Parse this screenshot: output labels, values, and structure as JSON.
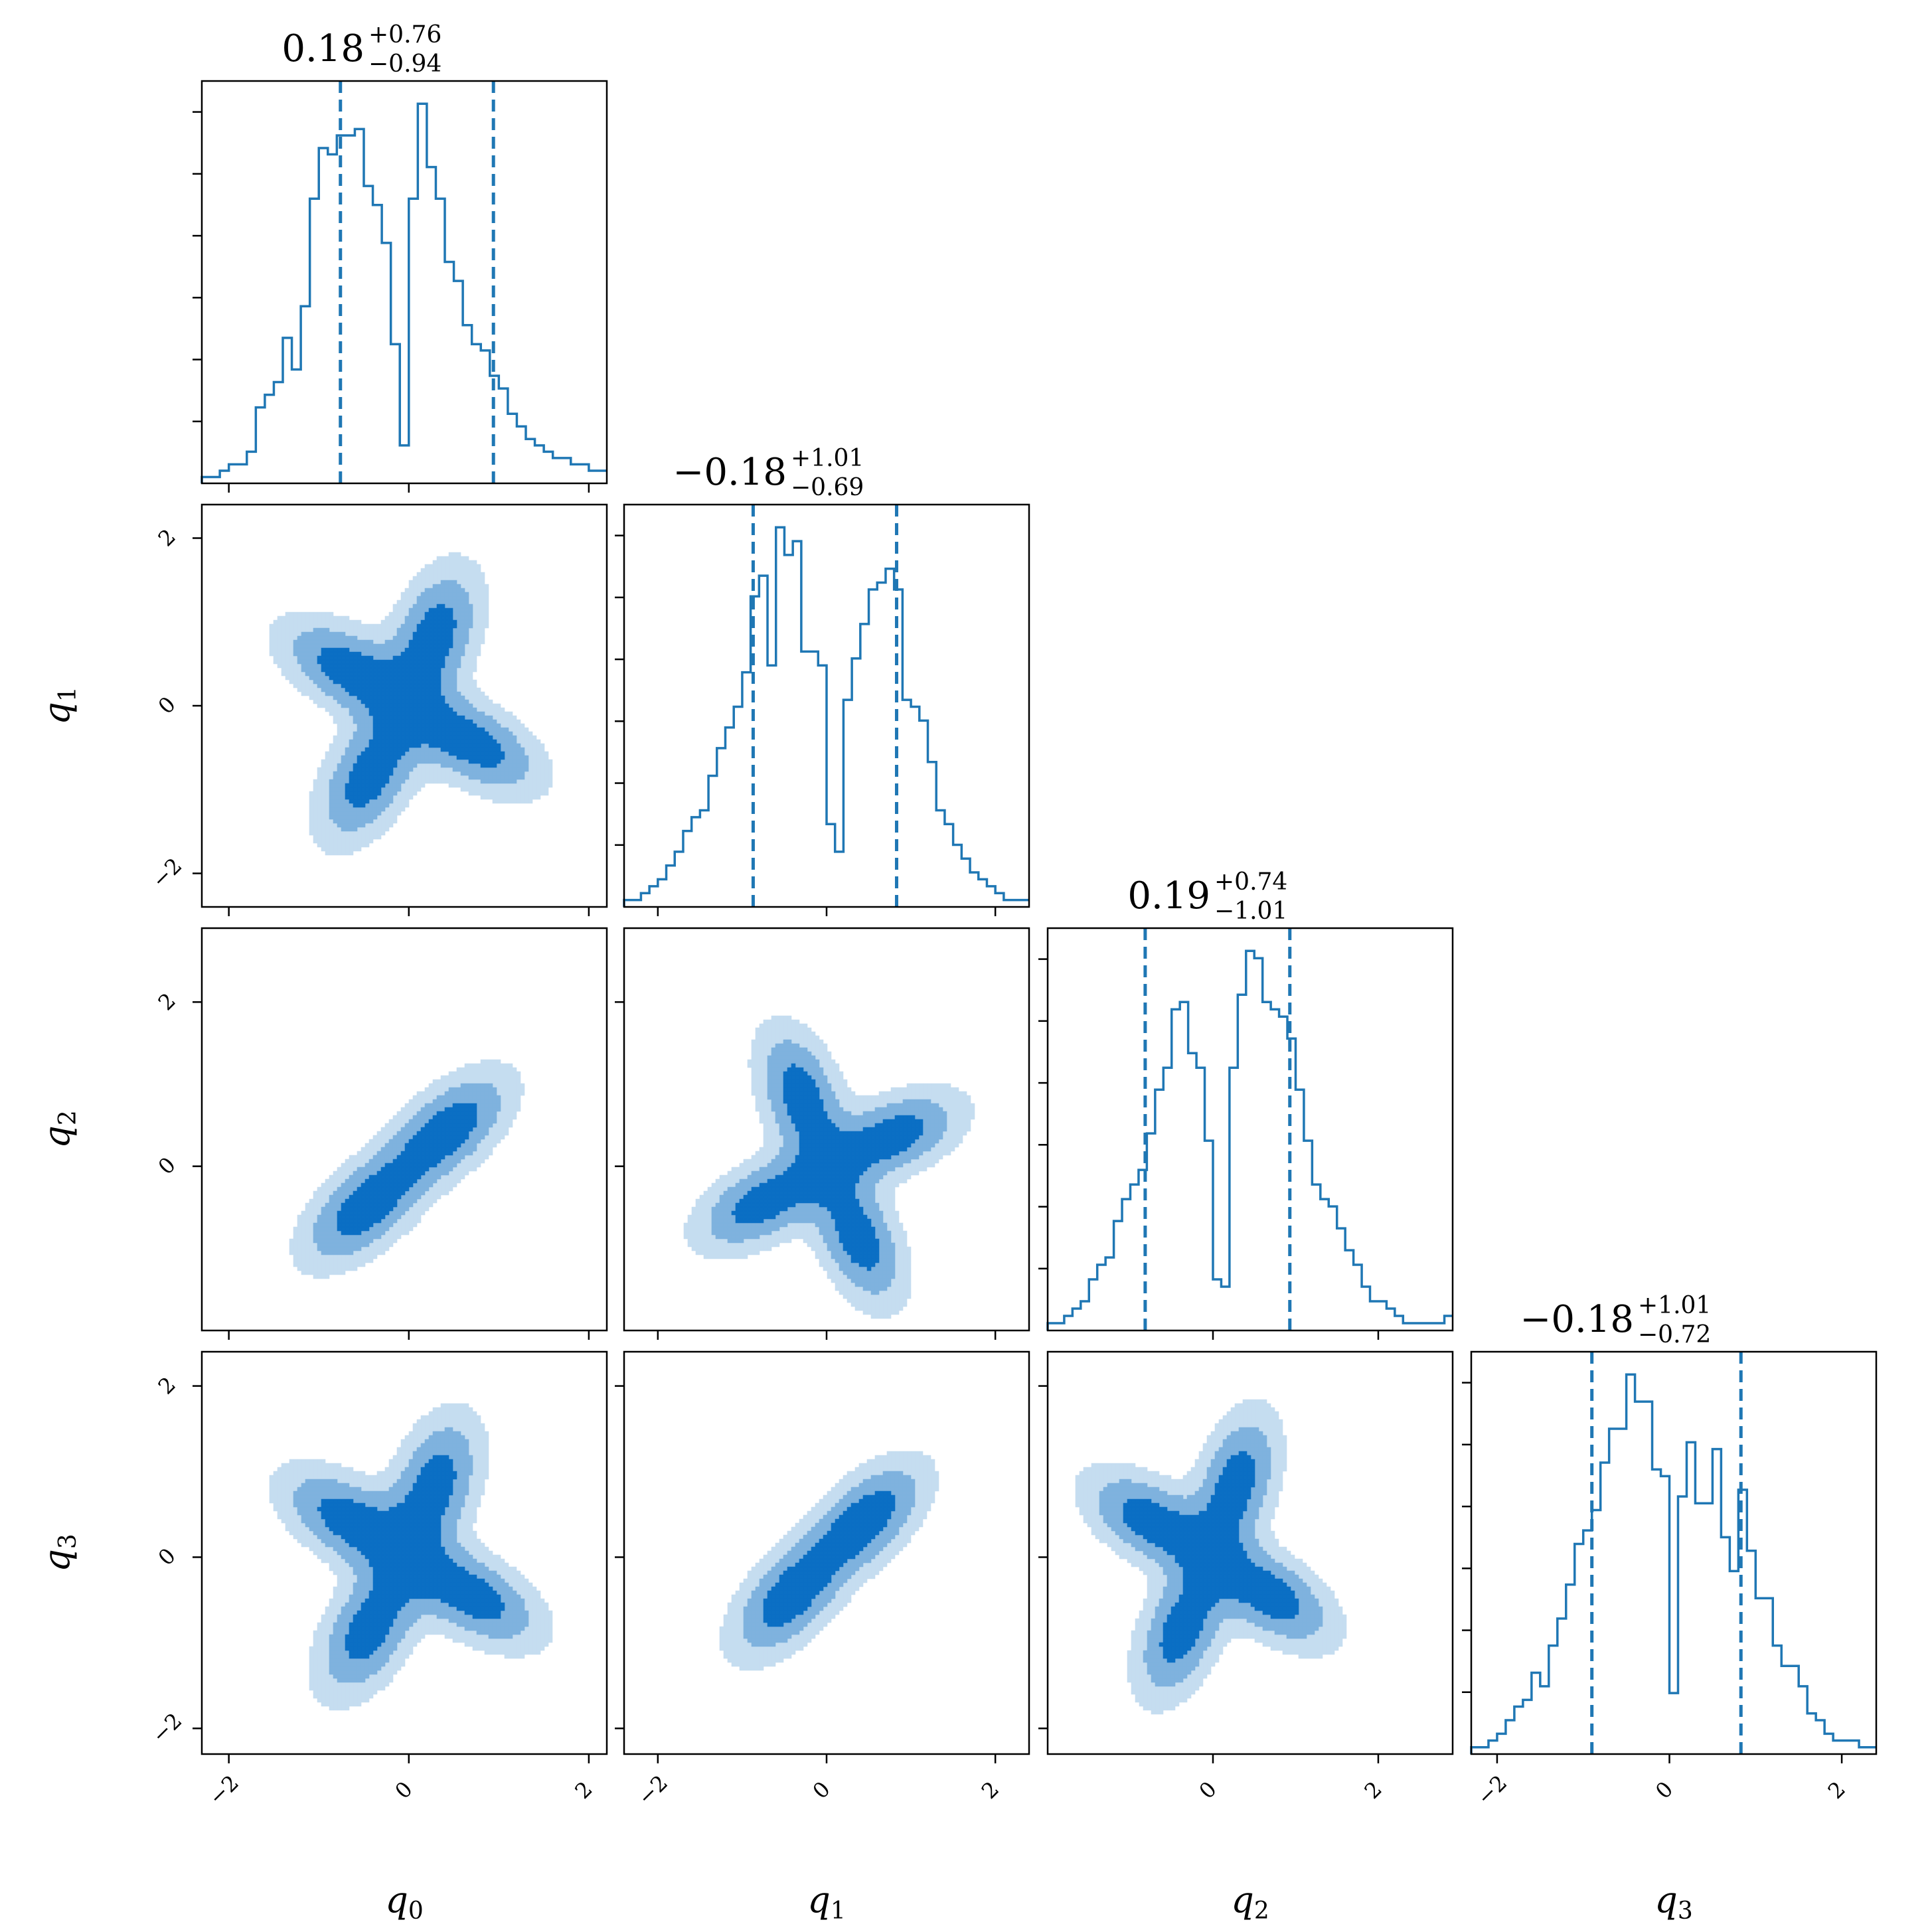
{
  "chart_data": {
    "type": "corner",
    "parameters": [
      "q",
      "q",
      "q",
      "q"
    ],
    "parameter_subscripts": [
      "0",
      "1",
      "2",
      "3"
    ],
    "colors": {
      "line": "#1f77b4",
      "level_outer": "#c5ddf0",
      "level_mid": "#7fb2de",
      "level_inner": "#0b6fc4"
    },
    "grid": false,
    "ticks": {
      "q0": [
        "−2",
        "0",
        "2"
      ],
      "q1": [
        "−2",
        "0",
        "2"
      ],
      "q2": [
        "0",
        "2"
      ],
      "q3": [
        "−2",
        "0",
        "2"
      ]
    },
    "axis_ranges": {
      "q0": [
        -2.3,
        2.2
      ],
      "q1": [
        -2.4,
        2.4
      ],
      "q2": [
        -2.0,
        2.9
      ],
      "q3": [
        -2.3,
        2.4
      ]
    },
    "marginals": [
      {
        "param": "q0",
        "title": {
          "median": "0.18",
          "plus": "+0.76",
          "minus": "−0.94"
        },
        "quantiles": [
          -0.76,
          0.94
        ],
        "bin_edges": [
          -2.3,
          -2.2,
          -2.1,
          -2.0,
          -1.9,
          -1.8,
          -1.7,
          -1.6,
          -1.5,
          -1.4,
          -1.3,
          -1.2,
          -1.1,
          -1.0,
          -0.9,
          -0.8,
          -0.7,
          -0.6,
          -0.5,
          -0.4,
          -0.3,
          -0.2,
          -0.1,
          0.0,
          0.1,
          0.2,
          0.3,
          0.4,
          0.5,
          0.6,
          0.7,
          0.8,
          0.9,
          1.0,
          1.1,
          1.2,
          1.3,
          1.4,
          1.5,
          1.6,
          1.7,
          1.8,
          1.9,
          2.0,
          2.1,
          2.2
        ],
        "counts": [
          1,
          1,
          2,
          3,
          3,
          5,
          12,
          14,
          16,
          23,
          18,
          28,
          45,
          53,
          52,
          55,
          55,
          56,
          47,
          44,
          38,
          22,
          6,
          45,
          60,
          50,
          45,
          35,
          32,
          25,
          22,
          21,
          17,
          15,
          11,
          9,
          7,
          6,
          5,
          4,
          4,
          3,
          3,
          2,
          2
        ]
      },
      {
        "param": "q1",
        "title": {
          "median": "−0.18",
          "plus": "+1.01",
          "minus": "−0.69"
        },
        "quantiles": [
          -0.87,
          0.83
        ],
        "bin_edges": [
          -2.4,
          -2.3,
          -2.2,
          -2.1,
          -2.0,
          -1.9,
          -1.8,
          -1.7,
          -1.6,
          -1.5,
          -1.4,
          -1.3,
          -1.2,
          -1.1,
          -1.0,
          -0.9,
          -0.8,
          -0.7,
          -0.6,
          -0.5,
          -0.4,
          -0.3,
          -0.2,
          -0.1,
          0.0,
          0.1,
          0.2,
          0.3,
          0.4,
          0.5,
          0.6,
          0.7,
          0.8,
          0.9,
          1.0,
          1.1,
          1.2,
          1.3,
          1.4,
          1.5,
          1.6,
          1.7,
          1.8,
          1.9,
          2.0,
          2.1,
          2.2,
          2.3,
          2.4
        ],
        "counts": [
          1,
          1,
          2,
          3,
          4,
          6,
          8,
          11,
          13,
          14,
          19,
          23,
          26,
          29,
          34,
          45,
          48,
          35,
          55,
          51,
          53,
          37,
          37,
          35,
          12,
          8,
          30,
          36,
          41,
          46,
          47,
          49,
          46,
          30,
          29,
          27,
          21,
          14,
          12,
          9,
          7,
          5,
          4,
          3,
          2,
          1,
          1,
          1
        ]
      },
      {
        "param": "q2",
        "title": {
          "median": "0.19",
          "plus": "+0.74",
          "minus": "−1.01"
        },
        "quantiles": [
          -0.82,
          0.93
        ],
        "bin_edges": [
          -2.0,
          -1.9,
          -1.8,
          -1.7,
          -1.6,
          -1.5,
          -1.4,
          -1.3,
          -1.2,
          -1.1,
          -1.0,
          -0.9,
          -0.8,
          -0.7,
          -0.6,
          -0.5,
          -0.4,
          -0.3,
          -0.2,
          -0.1,
          0.0,
          0.1,
          0.2,
          0.3,
          0.4,
          0.5,
          0.6,
          0.7,
          0.8,
          0.9,
          1.0,
          1.1,
          1.2,
          1.3,
          1.4,
          1.5,
          1.6,
          1.7,
          1.8,
          1.9,
          2.0,
          2.1,
          2.2,
          2.3,
          2.4,
          2.5,
          2.6,
          2.7,
          2.8,
          2.9
        ],
        "counts": [
          1,
          1,
          2,
          3,
          4,
          7,
          9,
          10,
          15,
          18,
          20,
          22,
          27,
          33,
          36,
          44,
          45,
          38,
          36,
          26,
          7,
          6,
          36,
          46,
          52,
          51,
          45,
          44,
          43,
          40,
          33,
          26,
          20,
          18,
          17,
          14,
          11,
          9,
          6,
          4,
          4,
          3,
          2,
          1,
          1,
          1,
          1,
          1,
          2
        ]
      },
      {
        "param": "q3",
        "title": {
          "median": "−0.18",
          "plus": "+1.01",
          "minus": "−0.72"
        },
        "quantiles": [
          -0.9,
          0.83
        ],
        "bin_edges": [
          -2.3,
          -2.2,
          -2.1,
          -2.0,
          -1.9,
          -1.8,
          -1.7,
          -1.6,
          -1.5,
          -1.4,
          -1.3,
          -1.2,
          -1.1,
          -1.0,
          -0.9,
          -0.8,
          -0.7,
          -0.6,
          -0.5,
          -0.4,
          -0.3,
          -0.2,
          -0.1,
          0.0,
          0.1,
          0.2,
          0.3,
          0.4,
          0.5,
          0.6,
          0.7,
          0.8,
          0.9,
          1.0,
          1.1,
          1.2,
          1.3,
          1.4,
          1.5,
          1.6,
          1.7,
          1.8,
          1.9,
          2.0,
          2.1,
          2.2,
          2.3,
          2.4
        ],
        "counts": [
          1,
          1,
          2,
          3,
          5,
          7,
          8,
          12,
          10,
          16,
          20,
          25,
          31,
          33,
          36,
          43,
          48,
          48,
          56,
          52,
          52,
          42,
          41,
          9,
          38,
          46,
          37,
          37,
          45,
          32,
          27,
          39,
          30,
          23,
          23,
          16,
          13,
          13,
          10,
          6,
          5,
          3,
          2,
          2,
          2,
          1,
          1
        ]
      }
    ],
    "pairs": [
      {
        "x": "q0",
        "y": "q1",
        "blobs": [
          [
            -0.65,
            0.42,
            0.53
          ],
          [
            0.28,
            0.82,
            0.53
          ],
          [
            0.7,
            -0.45,
            0.53
          ],
          [
            -0.44,
            -0.84,
            0.53
          ]
        ]
      },
      {
        "x": "q0",
        "y": "q2",
        "blobs": [
          [
            0.45,
            0.46,
            0.53
          ],
          [
            -0.5,
            -0.52,
            0.53
          ]
        ]
      },
      {
        "x": "q1",
        "y": "q2",
        "blobs": [
          [
            -0.3,
            0.85,
            0.53
          ],
          [
            0.78,
            0.36,
            0.53
          ],
          [
            -0.75,
            -0.44,
            0.53
          ],
          [
            0.38,
            -0.88,
            0.53
          ]
        ]
      },
      {
        "x": "q0",
        "y": "q3",
        "blobs": [
          [
            -0.65,
            0.42,
            0.53
          ],
          [
            0.28,
            0.82,
            0.53
          ],
          [
            0.7,
            -0.45,
            0.53
          ],
          [
            -0.44,
            -0.84,
            0.53
          ]
        ]
      },
      {
        "x": "q1",
        "y": "q3",
        "blobs": [
          [
            0.48,
            0.45,
            0.53
          ],
          [
            -0.45,
            -0.48,
            0.53
          ]
        ]
      },
      {
        "x": "q2",
        "y": "q3",
        "blobs": [
          [
            -0.75,
            0.42,
            0.53
          ],
          [
            0.28,
            0.85,
            0.53
          ],
          [
            0.7,
            -0.45,
            0.53
          ],
          [
            -0.38,
            -0.85,
            0.53
          ]
        ]
      }
    ]
  }
}
